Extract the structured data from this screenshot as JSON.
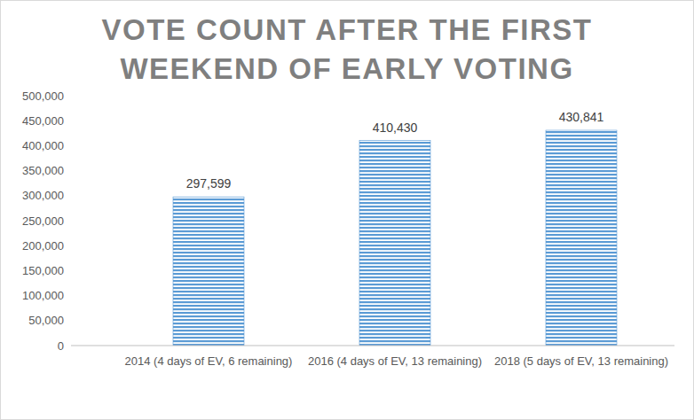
{
  "chart_data": {
    "type": "bar",
    "title": "VOTE COUNT AFTER THE FIRST WEEKEND OF EARLY VOTING",
    "categories": [
      "2014 (4 days of EV, 6 remaining)",
      "2016  (4 days of EV, 13 remaining)",
      "2018 (5 days of EV, 13 remaining)"
    ],
    "values": [
      297599,
      410430,
      430841
    ],
    "value_labels": [
      "297,599",
      "410,430",
      "430,841"
    ],
    "data_labels": true,
    "color": "#5b9bd5",
    "ylim": [
      0,
      500000
    ],
    "yticks": [
      0,
      {
        "value": 50000,
        "label": "50,000"
      },
      {
        "value": 100000,
        "label": "100,000"
      },
      {
        "value": 150000,
        "label": "150,000"
      },
      {
        "value": 200000,
        "label": "200,000"
      },
      {
        "value": 250000,
        "label": "250,000"
      },
      {
        "value": 300000,
        "label": "300,000"
      },
      {
        "value": 350000,
        "label": "350,000"
      },
      {
        "value": 400000,
        "label": "400,000"
      },
      {
        "value": 450000,
        "label": "450,000"
      },
      {
        "value": 500000,
        "label": "500,000"
      }
    ],
    "grid": false
  }
}
